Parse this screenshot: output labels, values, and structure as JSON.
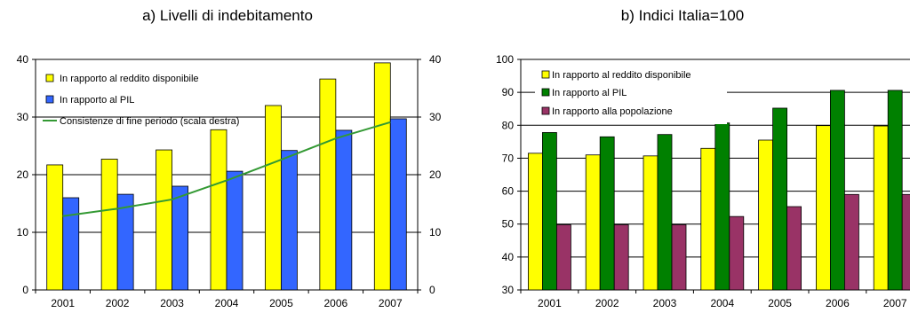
{
  "chart_data": [
    {
      "type": "bar",
      "title": "a) Livelli di indebitamento",
      "categories": [
        "2001",
        "2002",
        "2003",
        "2004",
        "2005",
        "2006",
        "2007"
      ],
      "ylim": [
        0,
        40
      ],
      "yticks": [
        "0",
        "10",
        "20",
        "30",
        "40"
      ],
      "y2lim": [
        0,
        40
      ],
      "y2ticks": [
        "0",
        "10",
        "20",
        "30",
        "40"
      ],
      "grid": true,
      "legend_position": "top-left",
      "series": [
        {
          "name": "In rapporto al reddito disponibile",
          "kind": "bar",
          "color": "#ffff00",
          "values": [
            21.7,
            22.7,
            24.3,
            27.8,
            32.0,
            36.6,
            39.4
          ]
        },
        {
          "name": "In rapporto al PIL",
          "kind": "bar",
          "color": "#3366ff",
          "values": [
            16.0,
            16.6,
            18.0,
            20.6,
            24.2,
            27.7,
            29.7
          ]
        },
        {
          "name": "Consistenze di fine periodo (scala destra)",
          "kind": "line",
          "axis": "right",
          "color": "#339933",
          "values": [
            12.8,
            14.1,
            15.7,
            19.0,
            22.6,
            26.3,
            29.1
          ]
        }
      ]
    },
    {
      "type": "bar",
      "title": "b) Indici Italia=100",
      "categories": [
        "2001",
        "2002",
        "2003",
        "2004",
        "2005",
        "2006",
        "2007"
      ],
      "ylim": [
        30,
        100
      ],
      "yticks": [
        "30",
        "40",
        "50",
        "60",
        "70",
        "80",
        "90",
        "100"
      ],
      "grid": true,
      "legend_position": "top-left",
      "series": [
        {
          "name": "In rapporto al reddito disponibile",
          "color": "#ffff00",
          "values": [
            71.5,
            71.0,
            70.7,
            73.0,
            75.5,
            79.9,
            79.8
          ]
        },
        {
          "name": "In rapporto al PIL",
          "color": "#008000",
          "values": [
            77.8,
            76.5,
            77.2,
            80.7,
            85.2,
            90.6,
            90.6
          ]
        },
        {
          "name": "In rapporto alla popolazione",
          "color": "#993366",
          "values": [
            49.8,
            49.8,
            49.8,
            52.3,
            55.3,
            59.0,
            59.0
          ]
        }
      ]
    }
  ]
}
